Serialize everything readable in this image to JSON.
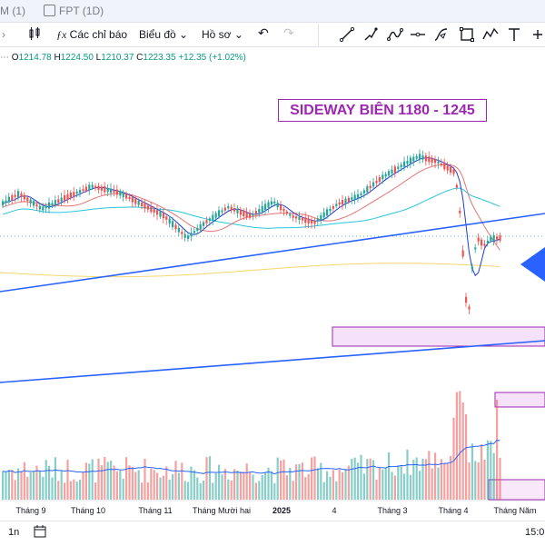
{
  "tabs": [
    {
      "label": "M (1)"
    },
    {
      "label": "FPT (1D)"
    }
  ],
  "toolbar": {
    "indicators_label": "Các chỉ báo",
    "chart_label": "Biểu đồ",
    "profile_label": "Hồ sơ"
  },
  "ohlc": {
    "open_key": "O",
    "open": "1214.78",
    "high_key": "H",
    "high": "1224.50",
    "low_key": "L",
    "low": "1210.37",
    "close_key": "C",
    "close": "1223.35",
    "change": "+12.35 (+1.02%)"
  },
  "annotation": "SIDEWAY BIÊN 1180 - 1245",
  "bottombar": {
    "interval_label": "1n",
    "time_label": "15:0"
  },
  "colors": {
    "up": "#26a69a",
    "down": "#ef5350",
    "trendline": "#2962ff",
    "zone": "#9c27b0",
    "ma_fast": "#1e3bd6",
    "ma_mid": "#e57373",
    "ma_slow": "#26c6da",
    "ma_long": "#f5d76e"
  },
  "chart_data": {
    "type": "candlestick",
    "x_ticks": [
      "Tháng 9",
      "Tháng 10",
      "Tháng 11",
      "Tháng Mười hai",
      "2025",
      "4",
      "Tháng 3",
      "Tháng 4",
      "Tháng Năm"
    ],
    "annotations": [
      "SIDEWAY BIÊN 1180 - 1245"
    ],
    "grid": false
  }
}
